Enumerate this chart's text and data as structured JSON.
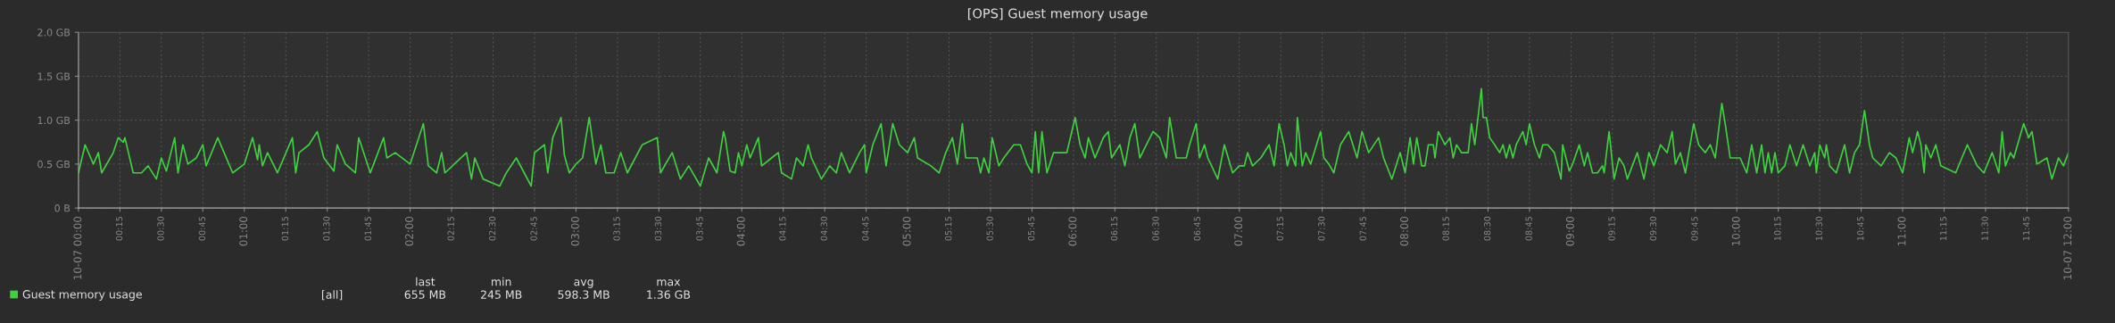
{
  "chart_data": {
    "type": "line",
    "title": "[OPS] Guest memory usage",
    "x": [
      0,
      0.04,
      0.09,
      0.12,
      0.14,
      0.21,
      0.24,
      0.27,
      0.28,
      0.33,
      0.38,
      0.42,
      0.47,
      0.5,
      0.53,
      0.58,
      0.6,
      0.63,
      0.66,
      0.71,
      0.75,
      0.77,
      0.84,
      0.93,
      1.0,
      1.05,
      1.08,
      1.09,
      1.11,
      1.14,
      1.2,
      1.29,
      1.31,
      1.33,
      1.39,
      1.44,
      1.48,
      1.54,
      1.56,
      1.61,
      1.67,
      1.69,
      1.76,
      1.84,
      1.86,
      1.91,
      2.0,
      2.08,
      2.11,
      2.16,
      2.19,
      2.21,
      2.34,
      2.37,
      2.39,
      2.44,
      2.54,
      2.58,
      2.64,
      2.73,
      2.75,
      2.81,
      2.83,
      2.86,
      2.91,
      2.93,
      2.96,
      3.0,
      3.04,
      3.08,
      3.12,
      3.15,
      3.18,
      3.23,
      3.27,
      3.31,
      3.4,
      3.49,
      3.51,
      3.58,
      3.63,
      3.68,
      3.75,
      3.8,
      3.85,
      3.89,
      3.9,
      3.93,
      3.96,
      3.98,
      4.0,
      4.03,
      4.05,
      4.1,
      4.12,
      4.18,
      4.22,
      4.24,
      4.3,
      4.33,
      4.37,
      4.4,
      4.42,
      4.48,
      4.53,
      4.57,
      4.6,
      4.65,
      4.71,
      4.74,
      4.75,
      4.79,
      4.84,
      4.87,
      4.91,
      4.95,
      5.0,
      5.04,
      5.06,
      5.14,
      5.19,
      5.23,
      5.27,
      5.3,
      5.33,
      5.35,
      5.42,
      5.44,
      5.46,
      5.49,
      5.51,
      5.55,
      5.58,
      5.64,
      5.68,
      5.72,
      5.75,
      5.77,
      5.79,
      5.81,
      5.84,
      5.88,
      5.96,
      6.01,
      6.04,
      6.07,
      6.09,
      6.13,
      6.18,
      6.21,
      6.23,
      6.28,
      6.31,
      6.34,
      6.37,
      6.4,
      6.44,
      6.48,
      6.52,
      6.56,
      6.58,
      6.62,
      6.68,
      6.7,
      6.74,
      6.76,
      6.79,
      6.81,
      6.87,
      6.91,
      6.96,
      7.0,
      7.03,
      7.05,
      7.08,
      7.13,
      7.18,
      7.21,
      7.24,
      7.27,
      7.29,
      7.31,
      7.34,
      7.35,
      7.38,
      7.4,
      7.43,
      7.49,
      7.51,
      7.54,
      7.57,
      7.61,
      7.66,
      7.71,
      7.74,
      7.78,
      7.84,
      7.87,
      7.92,
      7.97,
      8.0,
      8.03,
      8.05,
      8.07,
      8.1,
      8.12,
      8.14,
      8.17,
      8.18,
      8.2,
      8.24,
      8.27,
      8.29,
      8.31,
      8.34,
      8.38,
      8.4,
      8.42,
      8.46,
      8.47,
      8.49,
      8.51,
      8.54,
      8.57,
      8.59,
      8.61,
      8.63,
      8.65,
      8.67,
      8.71,
      8.73,
      8.75,
      8.78,
      8.81,
      8.83,
      8.86,
      8.9,
      8.94,
      8.95,
      8.99,
      9.01,
      9.05,
      9.08,
      9.1,
      9.13,
      9.16,
      9.19,
      9.2,
      9.23,
      9.26,
      9.29,
      9.32,
      9.34,
      9.4,
      9.44,
      9.47,
      9.5,
      9.54,
      9.58,
      9.61,
      9.63,
      9.66,
      9.69,
      9.74,
      9.77,
      9.81,
      9.84,
      9.87,
      9.91,
      9.93,
      9.96,
      10.02,
      10.06,
      10.09,
      10.12,
      10.15,
      10.17,
      10.19,
      10.21,
      10.23,
      10.25,
      10.29,
      10.32,
      10.36,
      10.4,
      10.44,
      10.47,
      10.48,
      10.5,
      10.53,
      10.54,
      10.56,
      10.6,
      10.65,
      10.68,
      10.71,
      10.74,
      10.77,
      10.8,
      10.82,
      10.87,
      10.92,
      10.96,
      11.0,
      11.04,
      11.06,
      11.09,
      11.11,
      11.13,
      11.14,
      11.17,
      11.2,
      11.23,
      11.32,
      11.39,
      11.45,
      11.49,
      11.54,
      11.58,
      11.6,
      11.62,
      11.65,
      11.67,
      11.73,
      11.76,
      11.78,
      11.81,
      11.87,
      11.9,
      11.94,
      11.97,
      12.0
    ],
    "series": [
      {
        "name": "Guest memory usage",
        "color": "#3fd13f",
        "values": [
          0.4,
          0.72,
          0.5,
          0.63,
          0.4,
          0.63,
          0.8,
          0.75,
          0.8,
          0.4,
          0.4,
          0.48,
          0.33,
          0.57,
          0.42,
          0.8,
          0.4,
          0.72,
          0.5,
          0.57,
          0.72,
          0.48,
          0.8,
          0.4,
          0.5,
          0.8,
          0.55,
          0.72,
          0.48,
          0.63,
          0.4,
          0.8,
          0.4,
          0.63,
          0.72,
          0.87,
          0.57,
          0.42,
          0.72,
          0.5,
          0.4,
          0.8,
          0.4,
          0.8,
          0.57,
          0.63,
          0.5,
          0.96,
          0.48,
          0.4,
          0.63,
          0.4,
          0.63,
          0.33,
          0.57,
          0.33,
          0.25,
          0.4,
          0.57,
          0.25,
          0.63,
          0.72,
          0.4,
          0.8,
          1.03,
          0.6,
          0.4,
          0.5,
          0.57,
          1.03,
          0.5,
          0.72,
          0.4,
          0.4,
          0.63,
          0.4,
          0.72,
          0.8,
          0.4,
          0.63,
          0.33,
          0.48,
          0.25,
          0.57,
          0.4,
          0.87,
          0.8,
          0.42,
          0.4,
          0.63,
          0.48,
          0.72,
          0.57,
          0.8,
          0.48,
          0.57,
          0.63,
          0.4,
          0.33,
          0.57,
          0.48,
          0.72,
          0.57,
          0.33,
          0.48,
          0.4,
          0.63,
          0.4,
          0.63,
          0.72,
          0.4,
          0.72,
          0.96,
          0.48,
          0.96,
          0.72,
          0.63,
          0.8,
          0.57,
          0.48,
          0.4,
          0.63,
          0.8,
          0.5,
          0.96,
          0.57,
          0.57,
          0.4,
          0.57,
          0.4,
          0.8,
          0.48,
          0.57,
          0.72,
          0.72,
          0.5,
          0.4,
          0.87,
          0.4,
          0.87,
          0.4,
          0.63,
          0.63,
          1.03,
          0.72,
          0.57,
          0.8,
          0.57,
          0.8,
          0.87,
          0.57,
          0.72,
          0.48,
          0.8,
          0.96,
          0.57,
          0.72,
          0.87,
          0.8,
          0.57,
          1.03,
          0.57,
          0.57,
          0.72,
          0.96,
          0.57,
          0.72,
          0.57,
          0.33,
          0.72,
          0.4,
          0.48,
          0.48,
          0.63,
          0.48,
          0.57,
          0.72,
          0.48,
          0.96,
          0.72,
          0.48,
          0.63,
          0.48,
          1.03,
          0.48,
          0.63,
          0.5,
          0.87,
          0.57,
          0.5,
          0.4,
          0.72,
          0.87,
          0.57,
          0.87,
          0.63,
          0.8,
          0.57,
          0.33,
          0.63,
          0.4,
          0.8,
          0.5,
          0.8,
          0.48,
          0.48,
          0.72,
          0.72,
          0.57,
          0.87,
          0.72,
          0.8,
          0.57,
          0.72,
          0.63,
          0.63,
          0.96,
          0.72,
          1.36,
          1.03,
          1.03,
          0.8,
          0.72,
          0.63,
          0.72,
          0.57,
          0.72,
          0.57,
          0.72,
          0.87,
          0.72,
          0.96,
          0.72,
          0.57,
          0.72,
          0.72,
          0.63,
          0.33,
          0.72,
          0.42,
          0.5,
          0.72,
          0.48,
          0.63,
          0.4,
          0.4,
          0.48,
          0.4,
          0.87,
          0.33,
          0.57,
          0.48,
          0.33,
          0.63,
          0.33,
          0.63,
          0.48,
          0.72,
          0.63,
          0.87,
          0.5,
          0.63,
          0.4,
          0.96,
          0.72,
          0.63,
          0.72,
          0.57,
          1.19,
          0.96,
          0.57,
          0.57,
          0.4,
          0.72,
          0.4,
          0.72,
          0.4,
          0.63,
          0.4,
          0.63,
          0.4,
          0.48,
          0.72,
          0.48,
          0.72,
          0.48,
          0.63,
          0.4,
          0.72,
          0.57,
          0.72,
          0.48,
          0.4,
          0.72,
          0.4,
          0.63,
          0.72,
          1.11,
          0.72,
          0.57,
          0.48,
          0.63,
          0.57,
          0.4,
          0.8,
          0.63,
          0.87,
          0.72,
          0.4,
          0.72,
          0.57,
          0.72,
          0.48,
          0.4,
          0.72,
          0.48,
          0.4,
          0.63,
          0.4,
          0.87,
          0.48,
          0.63,
          0.57,
          0.96,
          0.8,
          0.87,
          0.5,
          0.57,
          0.33,
          0.57,
          0.48,
          0.63
        ]
      }
    ],
    "xlim": [
      0,
      12
    ],
    "xticks": [
      {
        "value": 0,
        "label": "10-07 00:00"
      },
      {
        "value": 0.25,
        "label": "00:15"
      },
      {
        "value": 0.5,
        "label": "00:30"
      },
      {
        "value": 0.75,
        "label": "00:45"
      },
      {
        "value": 1,
        "label": "01:00"
      },
      {
        "value": 1.25,
        "label": "01:15"
      },
      {
        "value": 1.5,
        "label": "01:30"
      },
      {
        "value": 1.75,
        "label": "01:45"
      },
      {
        "value": 2,
        "label": "02:00"
      },
      {
        "value": 2.25,
        "label": "02:15"
      },
      {
        "value": 2.5,
        "label": "02:30"
      },
      {
        "value": 2.75,
        "label": "02:45"
      },
      {
        "value": 3,
        "label": "03:00"
      },
      {
        "value": 3.25,
        "label": "03:15"
      },
      {
        "value": 3.5,
        "label": "03:30"
      },
      {
        "value": 3.75,
        "label": "03:45"
      },
      {
        "value": 4,
        "label": "04:00"
      },
      {
        "value": 4.25,
        "label": "04:15"
      },
      {
        "value": 4.5,
        "label": "04:30"
      },
      {
        "value": 4.75,
        "label": "04:45"
      },
      {
        "value": 5,
        "label": "05:00"
      },
      {
        "value": 5.25,
        "label": "05:15"
      },
      {
        "value": 5.5,
        "label": "05:30"
      },
      {
        "value": 5.75,
        "label": "05:45"
      },
      {
        "value": 6,
        "label": "06:00"
      },
      {
        "value": 6.25,
        "label": "06:15"
      },
      {
        "value": 6.5,
        "label": "06:30"
      },
      {
        "value": 6.75,
        "label": "06:45"
      },
      {
        "value": 7,
        "label": "07:00"
      },
      {
        "value": 7.25,
        "label": "07:15"
      },
      {
        "value": 7.5,
        "label": "07:30"
      },
      {
        "value": 7.75,
        "label": "07:45"
      },
      {
        "value": 8,
        "label": "08:00"
      },
      {
        "value": 8.25,
        "label": "08:15"
      },
      {
        "value": 8.5,
        "label": "08:30"
      },
      {
        "value": 8.75,
        "label": "08:45"
      },
      {
        "value": 9,
        "label": "09:00"
      },
      {
        "value": 9.25,
        "label": "09:15"
      },
      {
        "value": 9.5,
        "label": "09:30"
      },
      {
        "value": 9.75,
        "label": "09:45"
      },
      {
        "value": 10,
        "label": "10:00"
      },
      {
        "value": 10.25,
        "label": "10:15"
      },
      {
        "value": 10.5,
        "label": "10:30"
      },
      {
        "value": 10.75,
        "label": "10:45"
      },
      {
        "value": 11,
        "label": "11:00"
      },
      {
        "value": 11.25,
        "label": "11:15"
      },
      {
        "value": 11.5,
        "label": "11:30"
      },
      {
        "value": 11.75,
        "label": "11:45"
      },
      {
        "value": 12,
        "label": "10-07 12:00"
      }
    ],
    "ylim": [
      0,
      2
    ],
    "yticks": [
      {
        "value": 0,
        "label": "0 B"
      },
      {
        "value": 0.5,
        "label": "0.5 GB"
      },
      {
        "value": 1,
        "label": "1.0 GB"
      },
      {
        "value": 1.5,
        "label": "1.5 GB"
      },
      {
        "value": 2,
        "label": "2.0 GB"
      }
    ],
    "grid": true,
    "legend": "bottom left",
    "marker": "none",
    "line_style": "solid",
    "annotations": [
      "[all]",
      "last",
      "min",
      "avg",
      "max",
      "655 MB",
      "245 MB",
      "598.3 MB",
      "1.36 GB"
    ]
  }
}
